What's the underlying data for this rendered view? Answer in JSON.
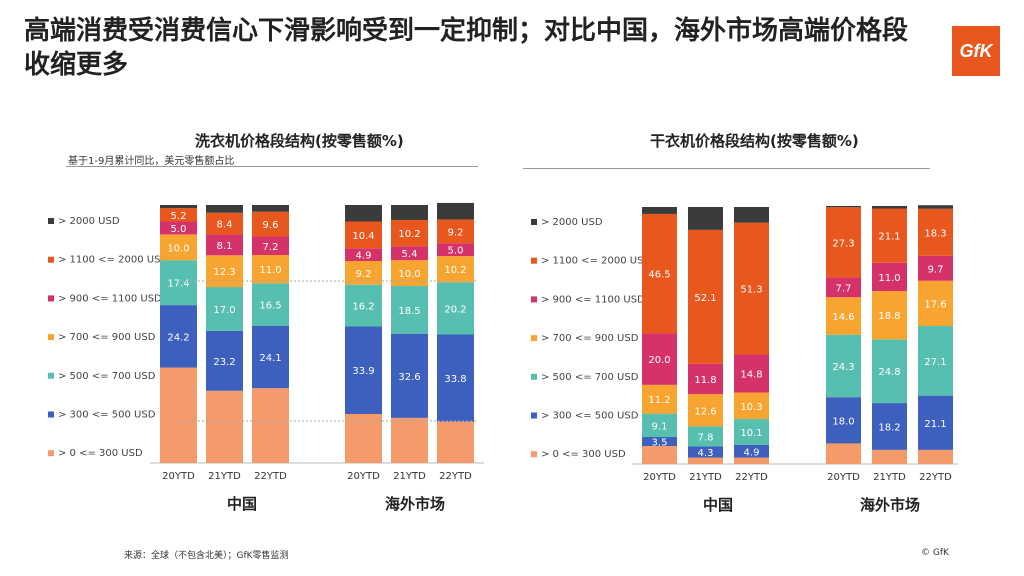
{
  "header": {
    "title": "高端消费受消费信心下滑影响受到一定抑制；对比中国，海外市场高端价格段收缩更多",
    "logo_text": "GfK"
  },
  "footer": {
    "source": "来源：全球（不包含北美）；GfK零售监测",
    "copyright": "© GfK"
  },
  "colors": {
    "> 2000 USD": "#3b3b3b",
    "> 1100 <= 2000 USD": "#e8571e",
    "> 900 <= 1100 USD": "#d6326a",
    "> 700 <= 900 USD": "#f7a530",
    "> 500 <= 700 USD": "#56bfb0",
    "> 300 <= 500 USD": "#3d5fbd",
    "> 0 <= 300 USD": "#f59a6a"
  },
  "chart_data": [
    {
      "type": "bar",
      "stacked": true,
      "title": "洗衣机价格段结构(按零售额%)",
      "note": "基于1-9月累计同比，美元零售额占比",
      "ylim": [
        0,
        100
      ],
      "legend_position": "left",
      "categories": [
        "20YTD",
        "21YTD",
        "22YTD",
        "20YTD",
        "21YTD",
        "22YTD"
      ],
      "groups": [
        "中国",
        "海外市场"
      ],
      "series": [
        {
          "name": "> 0 <= 300 USD",
          "values": [
            37.0,
            28.0,
            29.0,
            19.0,
            17.5,
            16.0
          ]
        },
        {
          "name": "> 300 <= 500 USD",
          "values": [
            24.2,
            23.2,
            24.1,
            33.9,
            32.6,
            33.8
          ]
        },
        {
          "name": "> 500 <= 700 USD",
          "values": [
            17.4,
            17.0,
            16.5,
            16.2,
            18.5,
            20.2
          ]
        },
        {
          "name": "> 700 <= 900 USD",
          "values": [
            10.0,
            12.3,
            11.0,
            9.2,
            10.0,
            10.2
          ]
        },
        {
          "name": "> 900 <= 1100 USD",
          "values": [
            5.0,
            8.1,
            7.2,
            4.9,
            5.4,
            5.0
          ]
        },
        {
          "name": "> 1100 <= 2000 USD",
          "values": [
            5.2,
            8.4,
            9.6,
            10.4,
            10.2,
            9.2
          ]
        },
        {
          "name": "> 2000 USD",
          "values": [
            1.2,
            3.0,
            2.6,
            6.4,
            5.8,
            6.4
          ]
        }
      ],
      "labels": [
        [
          null,
          null,
          null,
          null,
          null,
          null
        ],
        [
          "24.2",
          "23.2",
          "24.1",
          "33.9",
          "32.6",
          "33.8"
        ],
        [
          "17.4",
          "17.0",
          "16.5",
          "16.2",
          "18.5",
          "20.2"
        ],
        [
          "10.0",
          "12.3",
          "11.0",
          "9.2",
          "10.0",
          "10.2"
        ],
        [
          "5.0",
          "8.1",
          "7.2",
          "4.9",
          "5.4",
          "5.0"
        ],
        [
          "5.2",
          "8.4",
          "9.6",
          "10.4",
          "10.2",
          "9.2"
        ],
        [
          null,
          null,
          null,
          null,
          null,
          null
        ]
      ]
    },
    {
      "type": "bar",
      "stacked": true,
      "title": "干衣机价格段结构(按零售额%)",
      "ylim": [
        0,
        100
      ],
      "legend_position": "left",
      "categories": [
        "20YTD",
        "21YTD",
        "22YTD",
        "20YTD",
        "21YTD",
        "22YTD"
      ],
      "groups": [
        "中国",
        "海外市场"
      ],
      "series": [
        {
          "name": "> 0 <= 300 USD",
          "values": [
            7.0,
            2.5,
            2.5,
            8.0,
            5.5,
            5.5
          ]
        },
        {
          "name": "> 300 <= 500 USD",
          "values": [
            3.5,
            4.3,
            4.9,
            18.0,
            18.2,
            21.1
          ]
        },
        {
          "name": "> 500 <= 700 USD",
          "values": [
            9.1,
            7.8,
            10.1,
            24.3,
            24.8,
            27.1
          ]
        },
        {
          "name": "> 700 <= 900 USD",
          "values": [
            11.2,
            12.6,
            10.3,
            14.6,
            18.8,
            17.6
          ]
        },
        {
          "name": "> 900 <= 1100 USD",
          "values": [
            20.0,
            11.8,
            14.8,
            7.7,
            11.0,
            9.7
          ]
        },
        {
          "name": "> 1100 <= 2000 USD",
          "values": [
            46.5,
            52.1,
            51.3,
            27.3,
            21.1,
            18.3
          ]
        },
        {
          "name": "> 2000 USD",
          "values": [
            2.7,
            8.9,
            6.1,
            0.5,
            1.0,
            1.4
          ]
        }
      ],
      "labels": [
        [
          null,
          null,
          null,
          null,
          null,
          null
        ],
        [
          "3.5",
          "4.3",
          "4.9",
          "18.0",
          "18.2",
          "21.1"
        ],
        [
          "9.1",
          "7.8",
          "10.1",
          "24.3",
          "24.8",
          "27.1"
        ],
        [
          "11.2",
          "12.6",
          "10.3",
          "14.6",
          "18.8",
          "17.6"
        ],
        [
          "20.0",
          "11.8",
          "14.8",
          "7.7",
          "11.0",
          "9.7"
        ],
        [
          "46.5",
          "52.1",
          "51.3",
          "27.3",
          "21.1",
          "18.3"
        ],
        [
          null,
          null,
          null,
          null,
          null,
          null
        ]
      ]
    }
  ]
}
